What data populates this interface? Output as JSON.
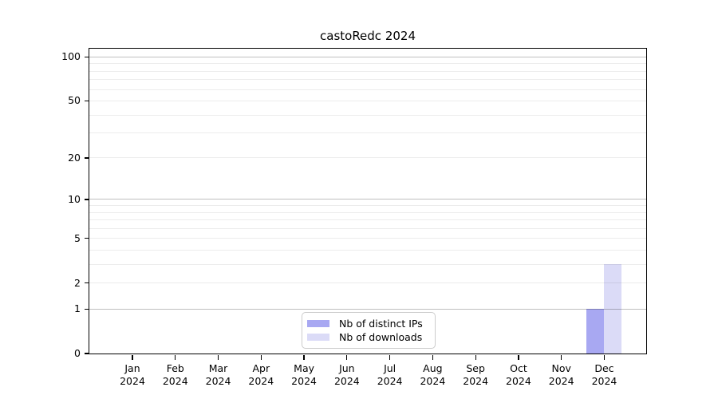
{
  "chart_data": {
    "type": "bar",
    "title": "castoRedc 2024",
    "x_tick_months": [
      "Jan",
      "Feb",
      "Mar",
      "Apr",
      "May",
      "Jun",
      "Jul",
      "Aug",
      "Sep",
      "Oct",
      "Nov",
      "Dec"
    ],
    "x_tick_year": "2024",
    "series": [
      {
        "name": "Nb of distinct IPs",
        "color": "#a8a8f2",
        "values": [
          0,
          0,
          0,
          0,
          0,
          0,
          0,
          0,
          0,
          0,
          0,
          1
        ]
      },
      {
        "name": "Nb of downloads",
        "color": "#dbdbf7",
        "values": [
          0,
          0,
          0,
          0,
          0,
          0,
          0,
          0,
          0,
          0,
          0,
          3
        ]
      }
    ],
    "y_scale": "log1p",
    "ylim": [
      0,
      114
    ],
    "y_ticks": [
      0,
      1,
      2,
      5,
      10,
      20,
      50,
      100
    ],
    "grid": {
      "light_values": [
        2,
        3,
        4,
        5,
        6,
        7,
        8,
        9,
        20,
        30,
        40,
        50,
        60,
        70,
        80,
        90
      ],
      "dark_values": [
        1,
        10,
        100
      ],
      "light_color": "rgba(0,0,0,0.075)",
      "dark_color": "rgba(0,0,0,0.25)"
    },
    "legend": {
      "position": "lower center",
      "entries": [
        "Nb of distinct IPs",
        "Nb of downloads"
      ]
    },
    "colors": {
      "distinct_ips_bar": "#a8a8f2",
      "downloads_bar": "#dbdbf7",
      "axis": "#000000",
      "legend_border": "#cccccc",
      "background": "#ffffff"
    }
  }
}
